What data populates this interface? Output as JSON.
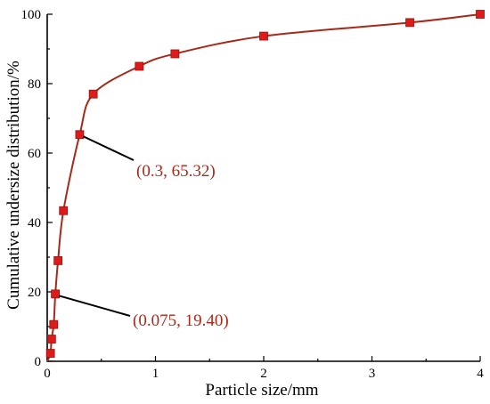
{
  "chart_data": {
    "type": "scatter",
    "xlabel": "Particle size/mm",
    "ylabel": "Cumulative undersize distribution/%",
    "xlim": [
      0,
      4
    ],
    "ylim": [
      0,
      100
    ],
    "x_ticks": [
      "0",
      "1",
      "2",
      "3",
      "4"
    ],
    "y_ticks": [
      "0",
      "20",
      "40",
      "60",
      "80",
      "100"
    ],
    "grid": false,
    "series": [
      {
        "marker": "square",
        "marker_color": "#e0191b",
        "line_color": "#a52a1a",
        "x": [
          0.03,
          0.04,
          0.06,
          0.075,
          0.1,
          0.15,
          0.3,
          0.425,
          0.85,
          1.18,
          2.0,
          3.35,
          4.0
        ],
        "y": [
          2.3,
          6.4,
          10.6,
          19.4,
          29.0,
          43.4,
          65.32,
          77.0,
          85.0,
          88.6,
          93.7,
          97.6,
          100.0
        ]
      }
    ],
    "annotations": [
      {
        "text": "(0.3, 65.32)",
        "point": [
          0.3,
          65.32
        ],
        "color": "#a52a1a"
      },
      {
        "text": "(0.075, 19.40)",
        "point": [
          0.075,
          19.4
        ],
        "color": "#a52a1a"
      }
    ]
  }
}
